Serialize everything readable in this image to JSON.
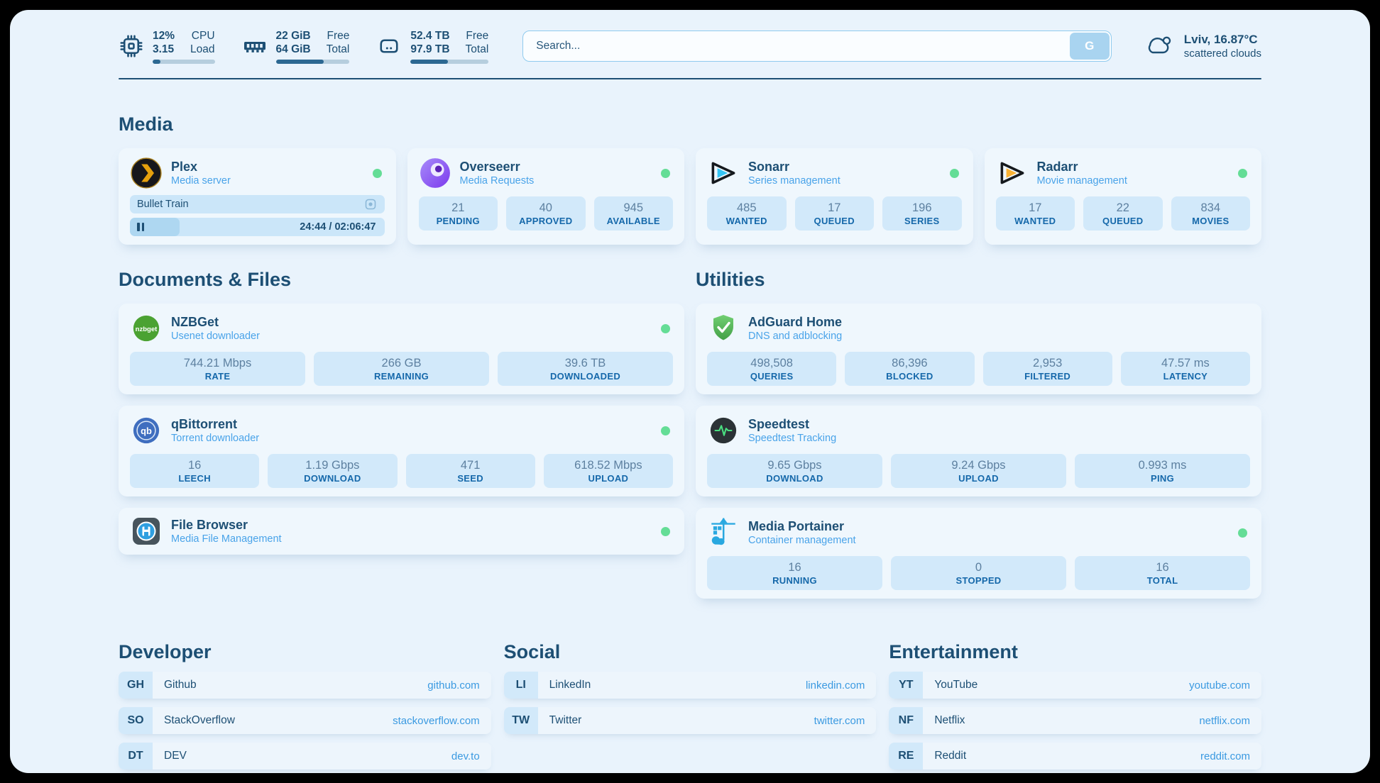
{
  "colors": {
    "status_online": "#64dd96",
    "accent_text": "#1d4f74",
    "subtitle_blue": "#49a3e9",
    "link_blue": "#3b9ae1",
    "stat_label_blue": "#1568aa"
  },
  "header": {
    "metrics": [
      {
        "values": [
          "12%",
          "3.15"
        ],
        "labels": [
          "CPU",
          "Load"
        ],
        "progress_pct": 13
      },
      {
        "values": [
          "22 GiB",
          "64 GiB"
        ],
        "labels": [
          "Free",
          "Total"
        ],
        "progress_pct": 65
      },
      {
        "values": [
          "52.4 TB",
          "97.9 TB"
        ],
        "labels": [
          "Free",
          "Total"
        ],
        "progress_pct": 48
      }
    ],
    "search": {
      "placeholder": "Search...",
      "provider_button": "G"
    },
    "weather": {
      "location": "Lviv, 16.87°C",
      "condition": "scattered clouds"
    }
  },
  "media": {
    "section_title": "Media",
    "plex": {
      "title": "Plex",
      "subtitle": "Media server",
      "now_playing": "Bullet Train",
      "time": "24:44 / 02:06:47",
      "progress_pct": 19.5
    },
    "overseerr": {
      "title": "Overseerr",
      "subtitle": "Media Requests",
      "stats": [
        {
          "value": "21",
          "label": "PENDING"
        },
        {
          "value": "40",
          "label": "APPROVED"
        },
        {
          "value": "945",
          "label": "AVAILABLE"
        }
      ]
    },
    "sonarr": {
      "title": "Sonarr",
      "subtitle": "Series management",
      "stats": [
        {
          "value": "485",
          "label": "WANTED"
        },
        {
          "value": "17",
          "label": "QUEUED"
        },
        {
          "value": "196",
          "label": "SERIES"
        }
      ]
    },
    "radarr": {
      "title": "Radarr",
      "subtitle": "Movie management",
      "stats": [
        {
          "value": "17",
          "label": "WANTED"
        },
        {
          "value": "22",
          "label": "QUEUED"
        },
        {
          "value": "834",
          "label": "MOVIES"
        }
      ]
    }
  },
  "documents": {
    "section_title": "Documents & Files",
    "nzbget": {
      "title": "NZBGet",
      "subtitle": "Usenet downloader",
      "stats": [
        {
          "value": "744.21 Mbps",
          "label": "RATE"
        },
        {
          "value": "266 GB",
          "label": "REMAINING"
        },
        {
          "value": "39.6 TB",
          "label": "DOWNLOADED"
        }
      ]
    },
    "qbittorrent": {
      "title": "qBittorrent",
      "subtitle": "Torrent downloader",
      "stats": [
        {
          "value": "16",
          "label": "LEECH"
        },
        {
          "value": "1.19 Gbps",
          "label": "DOWNLOAD"
        },
        {
          "value": "471",
          "label": "SEED"
        },
        {
          "value": "618.52 Mbps",
          "label": "UPLOAD"
        }
      ]
    },
    "filebrowser": {
      "title": "File Browser",
      "subtitle": "Media File Management"
    }
  },
  "utilities": {
    "section_title": "Utilities",
    "adguard": {
      "title": "AdGuard Home",
      "subtitle": "DNS and adblocking",
      "stats": [
        {
          "value": "498,508",
          "label": "QUERIES"
        },
        {
          "value": "86,396",
          "label": "BLOCKED"
        },
        {
          "value": "2,953",
          "label": "FILTERED"
        },
        {
          "value": "47.57 ms",
          "label": "LATENCY"
        }
      ]
    },
    "speedtest": {
      "title": "Speedtest",
      "subtitle": "Speedtest Tracking",
      "stats": [
        {
          "value": "9.65 Gbps",
          "label": "DOWNLOAD"
        },
        {
          "value": "9.24 Gbps",
          "label": "UPLOAD"
        },
        {
          "value": "0.993 ms",
          "label": "PING"
        }
      ]
    },
    "portainer": {
      "title": "Media Portainer",
      "subtitle": "Container management",
      "stats": [
        {
          "value": "16",
          "label": "RUNNING"
        },
        {
          "value": "0",
          "label": "STOPPED"
        },
        {
          "value": "16",
          "label": "TOTAL"
        }
      ]
    }
  },
  "links": {
    "developer": {
      "section_title": "Developer",
      "items": [
        {
          "abbr": "GH",
          "name": "Github",
          "url": "github.com"
        },
        {
          "abbr": "SO",
          "name": "StackOverflow",
          "url": "stackoverflow.com"
        },
        {
          "abbr": "DT",
          "name": "DEV",
          "url": "dev.to"
        }
      ]
    },
    "social": {
      "section_title": "Social",
      "items": [
        {
          "abbr": "LI",
          "name": "LinkedIn",
          "url": "linkedin.com"
        },
        {
          "abbr": "TW",
          "name": "Twitter",
          "url": "twitter.com"
        }
      ]
    },
    "entertainment": {
      "section_title": "Entertainment",
      "items": [
        {
          "abbr": "YT",
          "name": "YouTube",
          "url": "youtube.com"
        },
        {
          "abbr": "NF",
          "name": "Netflix",
          "url": "netflix.com"
        },
        {
          "abbr": "RE",
          "name": "Reddit",
          "url": "reddit.com"
        }
      ]
    }
  }
}
